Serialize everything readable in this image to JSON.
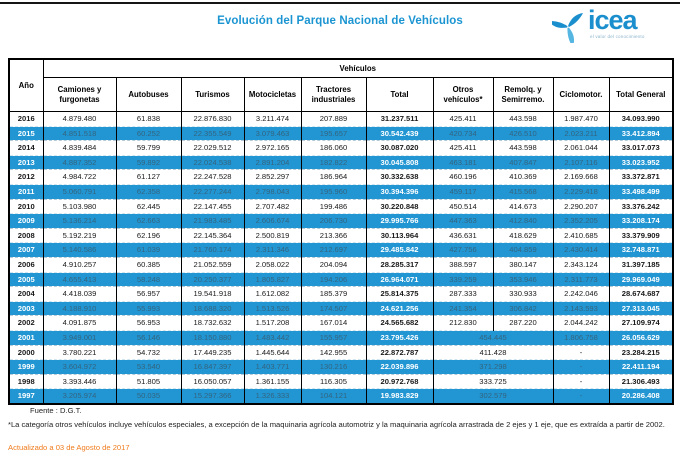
{
  "title": "Evolución del Parque Nacional de Vehículos",
  "logo": {
    "word": "icea",
    "tagline": "el valor del conocimiento",
    "brand_color": "#1b8fce"
  },
  "table": {
    "corner_header": "Año",
    "group_header": "Vehículos",
    "columns": [
      "Camiones y furgonetas",
      "Autobuses",
      "Turismos",
      "Motocicletas",
      "Tractores industriales",
      "Total",
      "Otros vehículos*",
      "Remolq. y Semirremo.",
      "Ciclomotor.",
      "Total General"
    ],
    "highlight_color": "#2196d3",
    "rows": [
      {
        "year": "2016",
        "camiones": "4.879.480",
        "autobuses": "61.838",
        "turismos": "22.876.830",
        "motocicletas": "3.211.474",
        "tractores": "207.889",
        "total": "31.237.511",
        "otros": "425.411",
        "remolq": "443.598",
        "ciclomotor": "1.987.470",
        "total_general": "34.093.990",
        "highlight": false
      },
      {
        "year": "2015",
        "camiones": "4.851.518",
        "autobuses": "60.252",
        "turismos": "22.355.549",
        "motocicletas": "3.079.463",
        "tractores": "195.657",
        "total": "30.542.439",
        "otros": "420.734",
        "remolq": "426.510",
        "ciclomotor": "2.023.211",
        "total_general": "33.412.894",
        "highlight": true
      },
      {
        "year": "2014",
        "camiones": "4.839.484",
        "autobuses": "59.799",
        "turismos": "22.029.512",
        "motocicletas": "2.972.165",
        "tractores": "186.060",
        "total": "30.087.020",
        "otros": "425.411",
        "remolq": "443.598",
        "ciclomotor": "2.061.044",
        "total_general": "33.017.073",
        "highlight": false
      },
      {
        "year": "2013",
        "camiones": "4.887.352",
        "autobuses": "59.892",
        "turismos": "22.024.538",
        "motocicletas": "2.891.204",
        "tractores": "182.822",
        "total": "30.045.808",
        "otros": "463.181",
        "remolq": "407.847",
        "ciclomotor": "2.107.116",
        "total_general": "33.023.952",
        "highlight": true
      },
      {
        "year": "2012",
        "camiones": "4.984.722",
        "autobuses": "61.127",
        "turismos": "22.247.528",
        "motocicletas": "2.852.297",
        "tractores": "186.964",
        "total": "30.332.638",
        "otros": "460.196",
        "remolq": "410.369",
        "ciclomotor": "2.169.668",
        "total_general": "33.372.871",
        "highlight": false
      },
      {
        "year": "2011",
        "camiones": "5.060.791",
        "autobuses": "62.358",
        "turismos": "22.277.244",
        "motocicletas": "2.798.043",
        "tractores": "195.960",
        "total": "30.394.396",
        "otros": "459.117",
        "remolq": "415.568",
        "ciclomotor": "2.229.418",
        "total_general": "33.498.499",
        "highlight": true
      },
      {
        "year": "2010",
        "camiones": "5.103.980",
        "autobuses": "62.445",
        "turismos": "22.147.455",
        "motocicletas": "2.707.482",
        "tractores": "199.486",
        "total": "30.220.848",
        "otros": "450.514",
        "remolq": "414.673",
        "ciclomotor": "2.290.207",
        "total_general": "33.376.242",
        "highlight": false
      },
      {
        "year": "2009",
        "camiones": "5.136.214",
        "autobuses": "62.663",
        "turismos": "21.983.485",
        "motocicletas": "2.606.674",
        "tractores": "206.730",
        "total": "29.995.766",
        "otros": "447.363",
        "remolq": "412.840",
        "ciclomotor": "2.352.205",
        "total_general": "33.208.174",
        "highlight": true
      },
      {
        "year": "2008",
        "camiones": "5.192.219",
        "autobuses": "62.196",
        "turismos": "22.145.364",
        "motocicletas": "2.500.819",
        "tractores": "213.366",
        "total": "30.113.964",
        "otros": "436.631",
        "remolq": "418.629",
        "ciclomotor": "2.410.685",
        "total_general": "33.379.909",
        "highlight": false
      },
      {
        "year": "2007",
        "camiones": "5.140.586",
        "autobuses": "61.039",
        "turismos": "21.760.174",
        "motocicletas": "2.311.346",
        "tractores": "212.697",
        "total": "29.485.842",
        "otros": "427.756",
        "remolq": "404.859",
        "ciclomotor": "2.430.414",
        "total_general": "32.748.871",
        "highlight": true
      },
      {
        "year": "2006",
        "camiones": "4.910.257",
        "autobuses": "60.385",
        "turismos": "21.052.559",
        "motocicletas": "2.058.022",
        "tractores": "204.094",
        "total": "28.285.317",
        "otros": "388.597",
        "remolq": "380.147",
        "ciclomotor": "2.343.124",
        "total_general": "31.397.185",
        "highlight": false
      },
      {
        "year": "2005",
        "camiones": "4.655.413",
        "autobuses": "58.248",
        "turismos": "20.250.377",
        "motocicletas": "1.805.827",
        "tractores": "194.206",
        "total": "26.964.071",
        "otros": "339.259",
        "remolq": "353.946",
        "ciclomotor": "2.311.773",
        "total_general": "29.969.049",
        "highlight": true
      },
      {
        "year": "2004",
        "camiones": "4.418.039",
        "autobuses": "56.957",
        "turismos": "19.541.918",
        "motocicletas": "1.612.082",
        "tractores": "185.379",
        "total": "25.814.375",
        "otros": "287.333",
        "remolq": "330.933",
        "ciclomotor": "2.242.046",
        "total_general": "28.674.687",
        "highlight": false,
        "tail_align": "right"
      },
      {
        "year": "2003",
        "camiones": "4.188.910",
        "autobuses": "55.993",
        "turismos": "18.688.320",
        "motocicletas": "1.513.526",
        "tractores": "174.507",
        "total": "24.621.256",
        "otros": "241.354",
        "remolq": "306.842",
        "ciclomotor": "2.143.593",
        "total_general": "27.313.045",
        "highlight": true,
        "tail_align": "right"
      },
      {
        "year": "2002",
        "camiones": "4.091.875",
        "autobuses": "56.953",
        "turismos": "18.732.632",
        "motocicletas": "1.517.208",
        "tractores": "167.014",
        "total": "24.565.682",
        "otros": "212.830",
        "remolq": "287.220",
        "ciclomotor": "2.044.242",
        "total_general": "27.109.974",
        "highlight": false,
        "tail_align": "right"
      },
      {
        "year": "2001",
        "camiones": "3.949.001",
        "autobuses": "56.146",
        "turismos": "18.150.880",
        "motocicletas": "1.483.442",
        "tractores": "155.957",
        "total": "23.795.426",
        "otros_remolq": "454.445",
        "ciclomotor": "1.806.758",
        "total_general": "26.056.629",
        "highlight": true,
        "merged": true
      },
      {
        "year": "2000",
        "camiones": "3.780.221",
        "autobuses": "54.732",
        "turismos": "17.449.235",
        "motocicletas": "1.445.644",
        "tractores": "142.955",
        "total": "22.872.787",
        "otros_remolq": "411.428",
        "ciclomotor": "-",
        "total_general": "23.284.215",
        "highlight": false,
        "merged": true
      },
      {
        "year": "1999",
        "camiones": "3.604.972",
        "autobuses": "53.540",
        "turismos": "16.847.397",
        "motocicletas": "1.403.771",
        "tractores": "130.216",
        "total": "22.039.896",
        "otros_remolq": "371.298",
        "ciclomotor": "-",
        "total_general": "22.411.194",
        "highlight": true,
        "merged": true
      },
      {
        "year": "1998",
        "camiones": "3.393.446",
        "autobuses": "51.805",
        "turismos": "16.050.057",
        "motocicletas": "1.361.155",
        "tractores": "116.305",
        "total": "20.972.768",
        "otros_remolq": "333.725",
        "ciclomotor": "-",
        "total_general": "21.306.493",
        "highlight": false,
        "merged": true
      },
      {
        "year": "1997",
        "camiones": "3.205.974",
        "autobuses": "50.035",
        "turismos": "15.297.366",
        "motocicletas": "1.326.333",
        "tractores": "104.121",
        "total": "19.983.829",
        "otros_remolq": "302.579",
        "ciclomotor": "-",
        "total_general": "20.286.408",
        "highlight": true,
        "merged": true
      }
    ]
  },
  "footer": {
    "fuente": "Fuente : D.G.T.",
    "footnote": "*La categoría otros vehículos incluye vehículos especiales, a excepción de la maquinaria agrícola automotriz y la maquinaria agrícola arrastrada de 2 ejes y 1 eje, que es extraída a partir de 2002.",
    "updated": "Actualizado a 03 de Agosto de 2017"
  }
}
